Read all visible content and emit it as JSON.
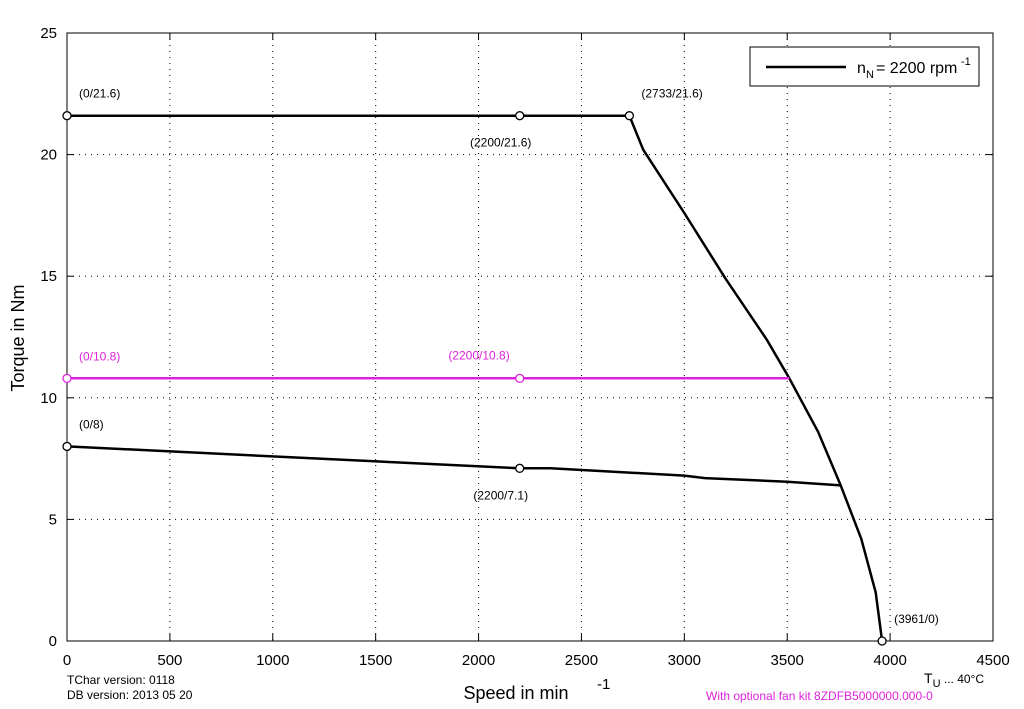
{
  "chart_data": {
    "type": "line",
    "xlabel": "Speed in min",
    "xlabel_sup": "-1",
    "ylabel": "Torque in Nm",
    "xlim": [
      0,
      4500
    ],
    "ylim": [
      0,
      25
    ],
    "x_ticks": [
      0,
      500,
      1000,
      1500,
      2000,
      2500,
      3000,
      3500,
      4000,
      4500
    ],
    "y_ticks": [
      0,
      5,
      10,
      15,
      20,
      25
    ],
    "grid": true,
    "legend": {
      "position": "top-right",
      "symbol": "n",
      "subscript": "N",
      "text": "= 2200 rpm",
      "sup": "-1"
    },
    "series": [
      {
        "color": "#000000",
        "points": [
          [
            0,
            21.6
          ],
          [
            2200,
            21.6
          ],
          [
            2733,
            21.6
          ],
          [
            2800,
            20.2
          ],
          [
            3000,
            17.6
          ],
          [
            3200,
            14.9
          ],
          [
            3400,
            12.4
          ],
          [
            3510,
            10.8
          ],
          [
            3650,
            8.6
          ],
          [
            3760,
            6.4
          ],
          [
            3860,
            4.2
          ],
          [
            3930,
            2.0
          ],
          [
            3961,
            0
          ]
        ]
      },
      {
        "color": "#dd22dd",
        "points": [
          [
            0,
            10.8
          ],
          [
            2200,
            10.8
          ],
          [
            3510,
            10.8
          ]
        ]
      },
      {
        "color": "#000000",
        "points": [
          [
            0,
            8.0
          ],
          [
            2200,
            7.1
          ],
          [
            2350,
            7.1
          ],
          [
            3000,
            6.8
          ],
          [
            3100,
            6.7
          ],
          [
            3500,
            6.55
          ],
          [
            3760,
            6.4
          ]
        ]
      }
    ],
    "markers": [
      {
        "x": 0,
        "y": 21.6,
        "label": "(0/21.6)",
        "color": "#000000",
        "pos": "above-right"
      },
      {
        "x": 2200,
        "y": 21.6,
        "label": "(2200/21.6)",
        "color": "#000000",
        "pos": "below"
      },
      {
        "x": 2733,
        "y": 21.6,
        "label": "(2733/21.6)",
        "color": "#000000",
        "pos": "above-right"
      },
      {
        "x": 0,
        "y": 10.8,
        "label": "(0/10.8)",
        "color": "#dd22dd",
        "pos": "above-right"
      },
      {
        "x": 2200,
        "y": 10.8,
        "label": "(2200/10.8)",
        "color": "#dd22dd",
        "pos": "above-left"
      },
      {
        "x": 0,
        "y": 8.0,
        "label": "(0/8)",
        "color": "#000000",
        "pos": "above-right"
      },
      {
        "x": 2200,
        "y": 7.1,
        "label": "(2200/7.1)",
        "color": "#000000",
        "pos": "below"
      },
      {
        "x": 3961,
        "y": 0,
        "label": "(3961/0)",
        "color": "#000000",
        "pos": "above-right"
      }
    ]
  },
  "notes": {
    "tchar_version": "TChar version: 0118",
    "db_version": "DB version: 2013 05 20",
    "ambient_symbol": "T",
    "ambient_sub": "U",
    "ambient_value": "... 40°C",
    "fan_kit": "With optional fan kit 8ZDFB5000000.000-0"
  },
  "colors": {
    "main": "#000000",
    "fan": "#dd22dd"
  }
}
